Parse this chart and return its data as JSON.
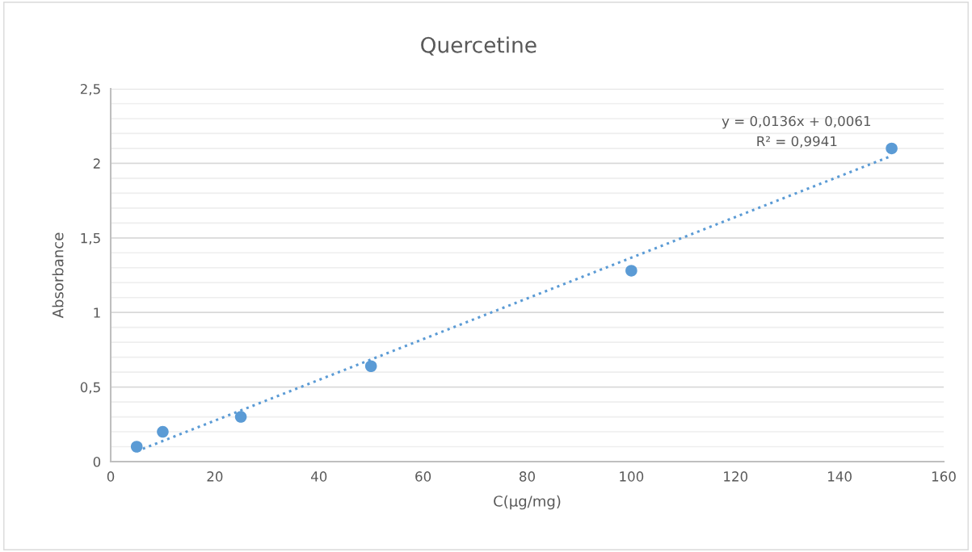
{
  "chart_data": {
    "type": "scatter",
    "title": "Quercetine",
    "xlabel": "C(µg/mg)",
    "ylabel": "Absorbance",
    "series": [
      {
        "color": "#5b9bd5",
        "x": [
          5,
          10,
          25,
          50,
          100,
          150
        ],
        "values": [
          0.1,
          0.2,
          0.3,
          0.64,
          1.28,
          2.1
        ],
        "marker": "circle"
      },
      {
        "type": "line",
        "color": "#5b9bd5",
        "x": [
          5,
          150
        ],
        "values": [
          0.07,
          2.05
        ],
        "line_style": "dotted",
        "marker": "none"
      }
    ],
    "annotations": [
      "y = 0,0136x + 0,0061",
      "R² = 0,9941"
    ],
    "xlim": [
      0,
      160
    ],
    "xticks": [
      0,
      20,
      40,
      60,
      80,
      100,
      120,
      140,
      160
    ],
    "ylim": [
      0,
      2.5
    ],
    "yticks": [
      0,
      {
        "value": 0.1,
        "label": null
      },
      {
        "value": 0.2,
        "label": null
      },
      {
        "value": 0.3,
        "label": null
      },
      {
        "value": 0.4,
        "label": null
      },
      {
        "value": 0.5,
        "label": "0,5"
      },
      {
        "value": 0.6,
        "label": null
      },
      {
        "value": 0.7,
        "label": null
      },
      {
        "value": 0.8,
        "label": null
      },
      {
        "value": 0.9,
        "label": null
      },
      1,
      {
        "value": 1.1,
        "label": null
      },
      {
        "value": 1.2,
        "label": null
      },
      {
        "value": 1.3,
        "label": null
      },
      {
        "value": 1.4,
        "label": null
      },
      {
        "value": 1.5,
        "label": "1,5"
      },
      {
        "value": 1.6,
        "label": null
      },
      {
        "value": 1.7,
        "label": null
      },
      {
        "value": 1.8,
        "label": null
      },
      {
        "value": 1.9,
        "label": null
      },
      2,
      {
        "value": 2.1,
        "label": null
      },
      {
        "value": 2.2,
        "label": null
      },
      {
        "value": 2.3,
        "label": null
      },
      {
        "value": 2.4,
        "label": null
      },
      {
        "value": 2.5,
        "label": "2,5"
      }
    ],
    "grid": "y",
    "legend": false
  }
}
